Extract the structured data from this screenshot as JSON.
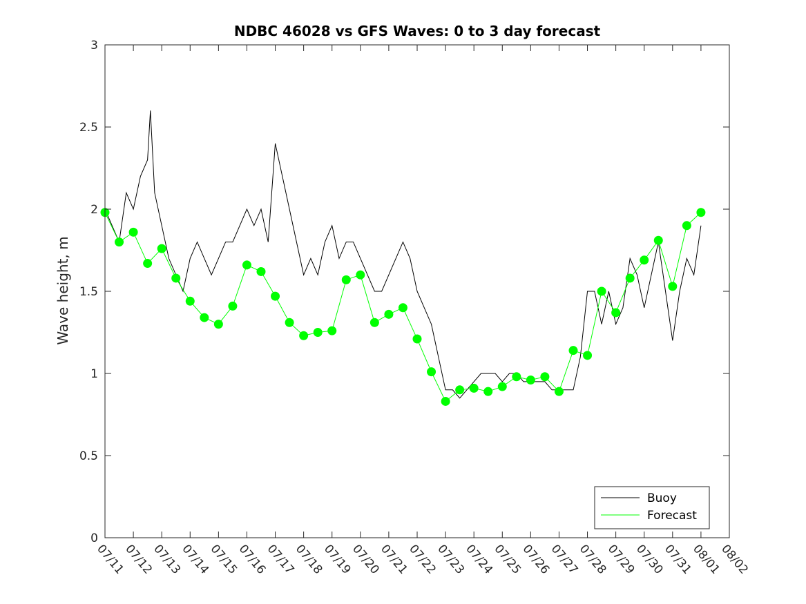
{
  "chart_data": {
    "type": "line",
    "title": "NDBC 46028 vs GFS Waves: 0 to 3 day forecast",
    "xlabel": "",
    "ylabel": "Wave height, m",
    "ylim": [
      0,
      3
    ],
    "yticks": [
      0,
      0.5,
      1,
      1.5,
      2,
      2.5,
      3
    ],
    "ytick_labels": [
      "0",
      "0.5",
      "1",
      "1.5",
      "2",
      "2.5",
      "3"
    ],
    "xlim": [
      "07/11",
      "08/02"
    ],
    "xtick_labels": [
      "07/11",
      "07/12",
      "07/13",
      "07/14",
      "07/15",
      "07/16",
      "07/17",
      "07/18",
      "07/19",
      "07/20",
      "07/21",
      "07/22",
      "07/23",
      "07/24",
      "07/25",
      "07/26",
      "07/27",
      "07/28",
      "07/29",
      "07/30",
      "07/31",
      "08/01",
      "08/02"
    ],
    "grid": false,
    "legend": {
      "position": "bottom-right",
      "entries": [
        "Buoy",
        "Forecast"
      ]
    },
    "colors": {
      "buoy": "#000000",
      "forecast": "#00ff00",
      "axis": "#262626"
    },
    "series": [
      {
        "name": "Buoy",
        "x_day_index": [
          0,
          0.25,
          0.5,
          0.75,
          1,
          1.25,
          1.5,
          1.6,
          1.75,
          2,
          2.25,
          2.5,
          2.75,
          3,
          3.25,
          3.5,
          3.75,
          4,
          4.25,
          4.5,
          4.75,
          5,
          5.25,
          5.5,
          5.75,
          6,
          6.25,
          6.5,
          6.75,
          7,
          7.25,
          7.5,
          7.75,
          8,
          8.25,
          8.5,
          8.75,
          9,
          9.25,
          9.5,
          9.75,
          10,
          10.25,
          10.5,
          10.75,
          11,
          11.25,
          11.5,
          11.75,
          12,
          12.25,
          12.5,
          12.75,
          13,
          13.25,
          13.5,
          13.75,
          14,
          14.25,
          14.5,
          14.75,
          15,
          15.25,
          15.5,
          15.75,
          16,
          16.25,
          16.5,
          16.75,
          17,
          17.25,
          17.5,
          17.75,
          18,
          18.25,
          18.5,
          18.75,
          19,
          19.25,
          19.5,
          19.75,
          20,
          20.25,
          20.5,
          20.75,
          21
        ],
        "values": [
          2.0,
          1.9,
          1.8,
          2.1,
          2.0,
          2.2,
          2.3,
          2.6,
          2.1,
          1.9,
          1.7,
          1.6,
          1.5,
          1.7,
          1.8,
          1.7,
          1.6,
          1.7,
          1.8,
          1.8,
          1.9,
          2.0,
          1.9,
          2.0,
          1.8,
          2.4,
          2.2,
          2.0,
          1.8,
          1.6,
          1.7,
          1.6,
          1.8,
          1.9,
          1.7,
          1.8,
          1.8,
          1.7,
          1.6,
          1.5,
          1.5,
          1.6,
          1.7,
          1.8,
          1.7,
          1.5,
          1.4,
          1.3,
          1.1,
          0.9,
          0.9,
          0.85,
          0.9,
          0.95,
          1.0,
          1.0,
          1.0,
          0.95,
          1.0,
          1.0,
          0.95,
          0.95,
          0.95,
          0.95,
          0.9,
          0.9,
          0.9,
          0.9,
          1.1,
          1.5,
          1.5,
          1.3,
          1.5,
          1.3,
          1.4,
          1.7,
          1.6,
          1.4,
          1.6,
          1.8,
          1.5,
          1.2,
          1.5,
          1.7,
          1.6,
          1.9
        ]
      },
      {
        "name": "Forecast",
        "x_day_index": [
          0,
          0.5,
          1,
          1.5,
          2,
          2.5,
          3,
          3.5,
          4,
          4.5,
          5,
          5.5,
          6,
          6.5,
          7,
          7.5,
          8,
          8.5,
          9,
          9.5,
          10,
          10.5,
          11,
          11.5,
          12,
          12.5,
          13,
          13.5,
          14,
          14.5,
          15,
          15.5,
          16,
          16.5,
          17,
          17.5,
          18,
          18.5,
          19,
          19.5,
          20,
          20.5,
          21
        ],
        "values": [
          1.98,
          1.8,
          1.86,
          1.67,
          1.76,
          1.58,
          1.44,
          1.34,
          1.3,
          1.41,
          1.66,
          1.62,
          1.47,
          1.31,
          1.23,
          1.25,
          1.26,
          1.57,
          1.6,
          1.31,
          1.36,
          1.4,
          1.21,
          1.01,
          0.83,
          0.9,
          0.91,
          0.89,
          0.92,
          0.98,
          0.96,
          0.98,
          0.89,
          1.14,
          1.11,
          1.5,
          1.37,
          1.58,
          1.69,
          1.81,
          1.53,
          1.9,
          1.98
        ]
      }
    ]
  }
}
